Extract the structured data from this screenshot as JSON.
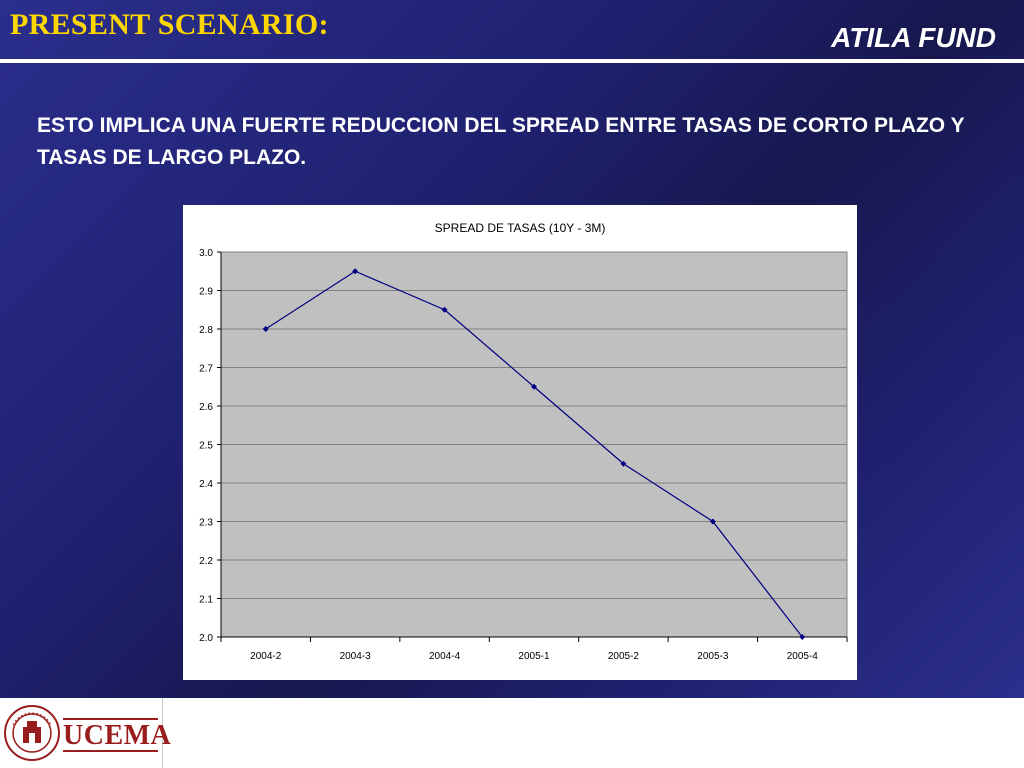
{
  "header": {
    "title": "PRESENT SCENARIO:",
    "fund": "ATILA FUND"
  },
  "body": {
    "text": "ESTO IMPLICA UNA FUERTE REDUCCION DEL SPREAD ENTRE TASAS DE CORTO PLAZO Y TASAS DE LARGO PLAZO."
  },
  "footer": {
    "logo_text": "UCEMA"
  },
  "colors": {
    "title": "#ffd700",
    "plot_bg": "#c0c0c0",
    "series": "#000080",
    "logo": "#9a1d1d"
  },
  "chart_data": {
    "type": "line",
    "title": "SPREAD DE TASAS (10Y - 3M)",
    "categories": [
      "2004-2",
      "2004-3",
      "2004-4",
      "2005-1",
      "2005-2",
      "2005-3",
      "2005-4"
    ],
    "series": [
      {
        "values": [
          2.8,
          2.95,
          2.85,
          2.65,
          2.45,
          2.3,
          2.0
        ]
      }
    ],
    "ylim": [
      2.0,
      3.0
    ],
    "yticks": [
      "2.0",
      "2.1",
      "2.2",
      "2.3",
      "2.4",
      "2.5",
      "2.6",
      "2.7",
      "2.8",
      "2.9",
      "3.0"
    ],
    "grid": true,
    "legend": "none"
  }
}
